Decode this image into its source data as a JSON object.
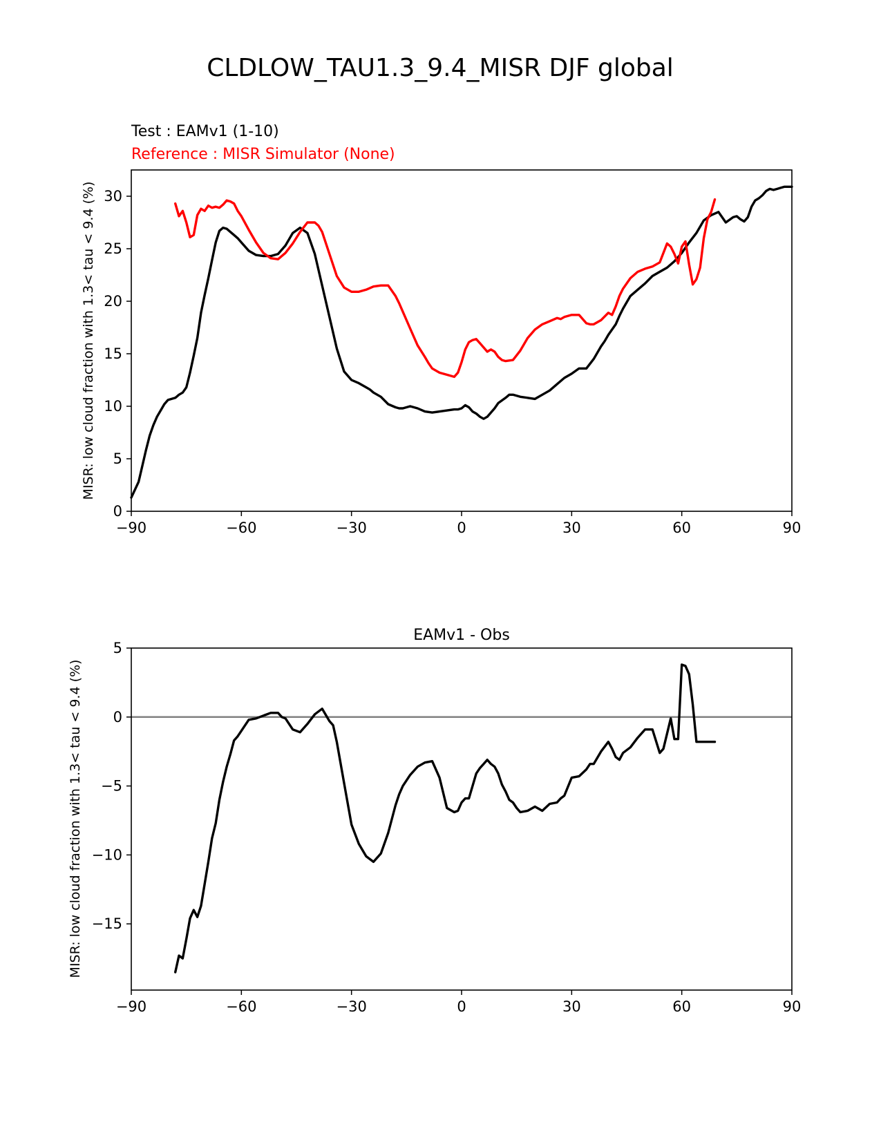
{
  "figure_title": "CLDLOW_TAU1.3_9.4_MISR DJF global",
  "chart_data": [
    {
      "type": "line",
      "test_label": "Test : EAMv1 (1-10)",
      "reference_label": "Reference : MISR Simulator (None)",
      "title": "",
      "xlabel": "",
      "ylabel": "MISR: low cloud fraction with 1.3< tau < 9.4 (%)",
      "xlim": [
        -90,
        90
      ],
      "ylim": [
        0,
        32.5
      ],
      "xticks": [
        -90,
        -60,
        -30,
        0,
        30,
        60,
        90
      ],
      "xtick_labels": [
        "−90",
        "−60",
        "−30",
        "0",
        "30",
        "60",
        "90"
      ],
      "yticks": [
        0,
        5,
        10,
        15,
        20,
        25,
        30
      ],
      "ytick_labels": [
        "0",
        "5",
        "10",
        "15",
        "20",
        "25",
        "30"
      ],
      "series": [
        {
          "name": "EAMv1 (1-10)",
          "color": "#000000",
          "x": [
            -90,
            -88,
            -87,
            -86,
            -85,
            -84,
            -83,
            -82,
            -81,
            -80,
            -78,
            -77,
            -76,
            -75,
            -74,
            -73,
            -72,
            -71,
            -70,
            -69,
            -68,
            -67,
            -66,
            -65,
            -64,
            -63,
            -62,
            -61,
            -60,
            -58,
            -56,
            -54,
            -52,
            -50,
            -48,
            -46,
            -44,
            -42,
            -40,
            -38,
            -36,
            -34,
            -32,
            -30,
            -28,
            -27,
            -26,
            -25,
            -24,
            -22,
            -20,
            -18,
            -17,
            -16,
            -14,
            -13,
            -12,
            -10,
            -8,
            -6,
            -4,
            -2,
            -1,
            0,
            1,
            2,
            3,
            4,
            5,
            6,
            7,
            8,
            9,
            10,
            12,
            13,
            14,
            16,
            18,
            20,
            22,
            24,
            26,
            28,
            30,
            32,
            34,
            36,
            38,
            39,
            40,
            42,
            43,
            44,
            46,
            48,
            50,
            52,
            54,
            56,
            58,
            60,
            61,
            62,
            64,
            66,
            68,
            70,
            72,
            74,
            75,
            76,
            77,
            78,
            79,
            80,
            81,
            82,
            83,
            84,
            85,
            86,
            87,
            88,
            89,
            90
          ],
          "y": [
            1.3,
            2.8,
            4.3,
            5.8,
            7.2,
            8.2,
            9.0,
            9.6,
            10.2,
            10.6,
            10.8,
            11.1,
            11.3,
            11.8,
            13.2,
            14.8,
            16.5,
            18.9,
            20.6,
            22.2,
            23.9,
            25.6,
            26.7,
            27.0,
            26.9,
            26.6,
            26.3,
            26.0,
            25.6,
            24.8,
            24.4,
            24.3,
            24.3,
            24.5,
            25.3,
            26.5,
            27.0,
            26.5,
            24.5,
            21.5,
            18.5,
            15.5,
            13.3,
            12.5,
            12.2,
            12.0,
            11.8,
            11.6,
            11.3,
            10.9,
            10.2,
            9.9,
            9.8,
            9.8,
            10.0,
            9.9,
            9.8,
            9.5,
            9.4,
            9.5,
            9.6,
            9.7,
            9.7,
            9.8,
            10.1,
            9.9,
            9.5,
            9.3,
            9.0,
            8.8,
            9.0,
            9.4,
            9.8,
            10.3,
            10.8,
            11.1,
            11.1,
            10.9,
            10.8,
            10.7,
            11.1,
            11.5,
            12.1,
            12.7,
            13.1,
            13.6,
            13.6,
            14.5,
            15.7,
            16.2,
            16.8,
            17.8,
            18.6,
            19.3,
            20.5,
            21.1,
            21.7,
            22.4,
            22.8,
            23.2,
            23.8,
            24.6,
            25.1,
            25.6,
            26.5,
            27.7,
            28.2,
            28.5,
            27.5,
            28.0,
            28.1,
            27.8,
            27.6,
            28.0,
            29.0,
            29.6,
            29.8,
            30.1,
            30.5,
            30.7,
            30.6,
            30.7,
            30.8,
            30.9,
            30.9,
            30.9
          ]
        },
        {
          "name": "MISR Simulator (None)",
          "color": "#ff0000",
          "x": [
            -78,
            -77,
            -76,
            -75,
            -74,
            -73,
            -72,
            -71,
            -70,
            -69,
            -68,
            -67,
            -66,
            -65,
            -64,
            -63,
            -62,
            -61,
            -60,
            -58,
            -56,
            -54,
            -52,
            -50,
            -49,
            -48,
            -46,
            -44,
            -42,
            -40,
            -39,
            -38,
            -36,
            -34,
            -32,
            -30,
            -28,
            -26,
            -24,
            -22,
            -20,
            -18,
            -17,
            -16,
            -14,
            -12,
            -10,
            -9,
            -8,
            -6,
            -4,
            -2,
            -1,
            0,
            1,
            2,
            3,
            4,
            5,
            6,
            7,
            8,
            9,
            10,
            11,
            12,
            14,
            16,
            18,
            20,
            22,
            24,
            26,
            27,
            28,
            30,
            32,
            34,
            35,
            36,
            38,
            40,
            41,
            42,
            43,
            44,
            46,
            48,
            50,
            52,
            54,
            56,
            57,
            58,
            59,
            60,
            61,
            62,
            63,
            64,
            65,
            66,
            67,
            68,
            69
          ],
          "y": [
            29.3,
            28.1,
            28.6,
            27.5,
            26.1,
            26.3,
            28.2,
            28.8,
            28.6,
            29.1,
            28.9,
            29.0,
            28.9,
            29.2,
            29.6,
            29.5,
            29.3,
            28.6,
            28.1,
            26.8,
            25.6,
            24.6,
            24.1,
            24.0,
            24.3,
            24.6,
            25.5,
            26.6,
            27.5,
            27.5,
            27.2,
            26.6,
            24.5,
            22.4,
            21.3,
            20.9,
            20.9,
            21.1,
            21.4,
            21.5,
            21.5,
            20.5,
            19.8,
            19.0,
            17.4,
            15.8,
            14.7,
            14.1,
            13.6,
            13.2,
            13.0,
            12.8,
            13.2,
            14.2,
            15.4,
            16.1,
            16.3,
            16.4,
            16.0,
            15.6,
            15.2,
            15.4,
            15.2,
            14.7,
            14.4,
            14.3,
            14.4,
            15.3,
            16.5,
            17.3,
            17.8,
            18.1,
            18.4,
            18.3,
            18.5,
            18.7,
            18.7,
            17.9,
            17.8,
            17.8,
            18.2,
            18.9,
            18.7,
            19.5,
            20.5,
            21.2,
            22.2,
            22.8,
            23.1,
            23.3,
            23.7,
            25.5,
            25.2,
            24.5,
            23.6,
            25.2,
            25.7,
            23.5,
            21.6,
            22.1,
            23.2,
            26.0,
            27.8,
            28.5,
            29.7
          ]
        }
      ]
    },
    {
      "type": "line",
      "title": "EAMv1 - Obs",
      "xlabel": "",
      "ylabel": "MISR: low cloud fraction with 1.3< tau < 9.4 (%)",
      "xlim": [
        -90,
        90
      ],
      "ylim": [
        -19.8,
        5
      ],
      "xticks": [
        -90,
        -60,
        -30,
        0,
        30,
        60,
        90
      ],
      "xtick_labels": [
        "−90",
        "−60",
        "−30",
        "0",
        "30",
        "60",
        "90"
      ],
      "yticks": [
        -15,
        -10,
        -5,
        0,
        5
      ],
      "ytick_labels": [
        "−15",
        "−10",
        "−5",
        "0",
        "5"
      ],
      "zero_line_color": "#808080",
      "series": [
        {
          "name": "EAMv1 - Obs",
          "color": "#000000",
          "x": [
            -78,
            -77,
            -76,
            -75,
            -74,
            -73,
            -72,
            -71,
            -70,
            -69,
            -68,
            -67,
            -66,
            -65,
            -64,
            -63,
            -62,
            -61,
            -60,
            -58,
            -56,
            -54,
            -52,
            -50,
            -49,
            -48,
            -46,
            -44,
            -42,
            -40,
            -38,
            -36,
            -35,
            -34,
            -32,
            -30,
            -28,
            -26,
            -24,
            -22,
            -20,
            -18,
            -17,
            -16,
            -14,
            -12,
            -10,
            -8,
            -6,
            -4,
            -2,
            -1,
            0,
            1,
            2,
            3,
            4,
            5,
            6,
            7,
            8,
            9,
            10,
            11,
            12,
            13,
            14,
            15,
            16,
            18,
            20,
            22,
            24,
            26,
            27,
            28,
            30,
            32,
            34,
            35,
            36,
            38,
            40,
            41,
            42,
            43,
            44,
            46,
            48,
            50,
            52,
            54,
            55,
            56,
            57,
            58,
            59,
            60,
            61,
            62,
            63,
            64,
            65,
            66,
            67,
            68,
            69
          ],
          "y": [
            -18.5,
            -17.3,
            -17.5,
            -16.1,
            -14.6,
            -14.0,
            -14.5,
            -13.7,
            -12.1,
            -10.5,
            -8.8,
            -7.7,
            -6.0,
            -4.7,
            -3.6,
            -2.7,
            -1.7,
            -1.4,
            -1.0,
            -0.2,
            -0.1,
            0.1,
            0.3,
            0.3,
            0.0,
            -0.1,
            -0.9,
            -1.1,
            -0.5,
            0.2,
            0.6,
            -0.3,
            -0.6,
            -1.8,
            -4.8,
            -7.8,
            -9.2,
            -10.1,
            -10.5,
            -9.9,
            -8.4,
            -6.4,
            -5.6,
            -5.0,
            -4.2,
            -3.6,
            -3.3,
            -3.2,
            -4.4,
            -6.6,
            -6.9,
            -6.8,
            -6.2,
            -5.9,
            -5.9,
            -5.0,
            -4.1,
            -3.7,
            -3.4,
            -3.1,
            -3.4,
            -3.6,
            -4.1,
            -4.9,
            -5.4,
            -6.0,
            -6.2,
            -6.6,
            -6.9,
            -6.8,
            -6.5,
            -6.8,
            -6.3,
            -6.2,
            -5.9,
            -5.7,
            -4.4,
            -4.3,
            -3.8,
            -3.4,
            -3.4,
            -2.5,
            -1.8,
            -2.3,
            -2.9,
            -3.1,
            -2.6,
            -2.2,
            -1.5,
            -0.9,
            -0.9,
            -2.6,
            -2.3,
            -1.2,
            -0.1,
            -1.6,
            -1.6,
            3.8,
            3.7,
            3.1,
            0.9,
            -1.8,
            -1.8,
            -1.8,
            -1.8,
            -1.8,
            -1.8
          ]
        }
      ]
    }
  ]
}
